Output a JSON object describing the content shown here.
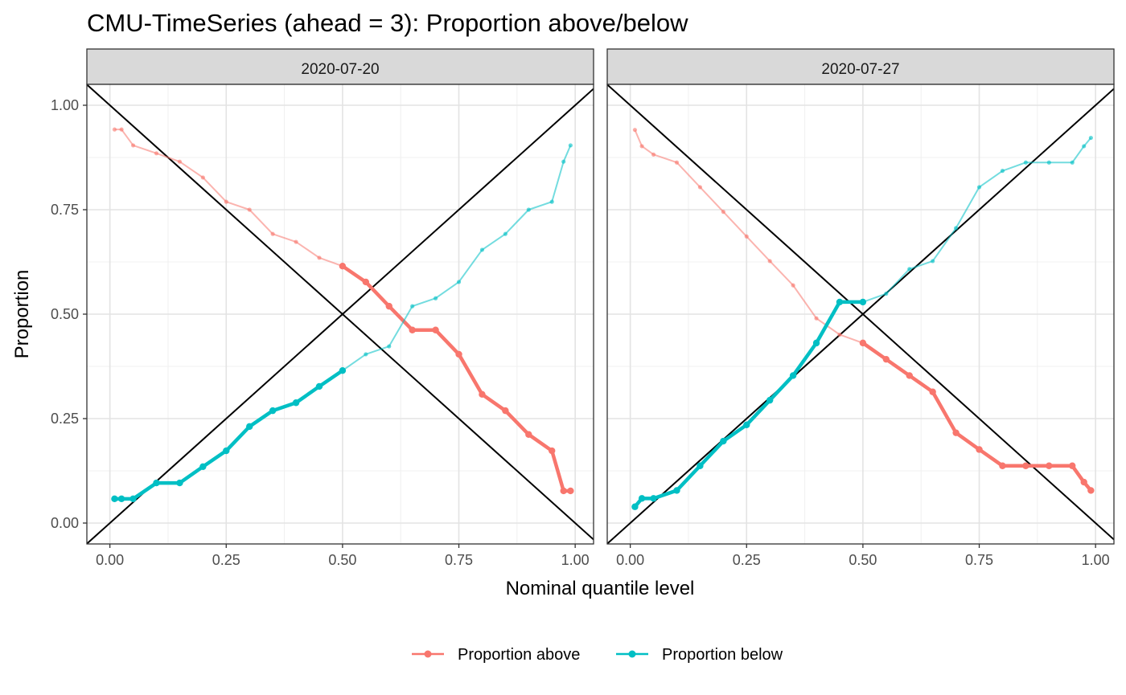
{
  "chart_data": {
    "type": "line",
    "title": "CMU-TimeSeries (ahead = 3): Proportion above/below",
    "xlabel": "Nominal quantile level",
    "ylabel": "Proportion",
    "xlim": [
      -0.0495,
      1.0395
    ],
    "ylim": [
      -0.05,
      1.05
    ],
    "x_ticks": [
      0,
      0.25,
      0.5,
      0.75,
      1
    ],
    "x_tick_labels": [
      "0.00",
      "0.25",
      "0.50",
      "0.75",
      "1.00"
    ],
    "y_ticks": [
      0,
      0.25,
      0.5,
      0.75,
      1
    ],
    "y_tick_labels": [
      "0.00",
      "0.25",
      "0.50",
      "0.75",
      "1.00"
    ],
    "grid": true,
    "legend_position": "bottom",
    "legend": [
      {
        "label": "Proportion above",
        "color": "#F8766D"
      },
      {
        "label": "Proportion below",
        "color": "#00BFC4"
      }
    ],
    "reference_lines": [
      "y = x",
      "y = 1 - x"
    ],
    "quantiles": [
      0.01,
      0.025,
      0.05,
      0.1,
      0.15,
      0.2,
      0.25,
      0.3,
      0.35,
      0.4,
      0.45,
      0.5,
      0.55,
      0.6,
      0.65,
      0.7,
      0.75,
      0.8,
      0.85,
      0.9,
      0.95,
      0.975,
      0.99
    ],
    "panels": [
      {
        "label": "2020-07-20",
        "series": [
          {
            "name": "Proportion above",
            "color": "#F8766D",
            "values": [
              0.942,
              0.942,
              0.904,
              0.885,
              0.865,
              0.827,
              0.769,
              0.75,
              0.692,
              0.673,
              0.635,
              0.615,
              0.577,
              0.519,
              0.462,
              0.462,
              0.404,
              0.308,
              0.269,
              0.212,
              0.173,
              0.077,
              0.077
            ]
          },
          {
            "name": "Proportion below",
            "color": "#00BFC4",
            "values": [
              0.058,
              0.058,
              0.058,
              0.096,
              0.096,
              0.135,
              0.173,
              0.231,
              0.269,
              0.288,
              0.327,
              0.365,
              0.404,
              0.423,
              0.519,
              0.538,
              0.577,
              0.654,
              0.692,
              0.75,
              0.769,
              0.865,
              0.904
            ]
          }
        ]
      },
      {
        "label": "2020-07-27",
        "series": [
          {
            "name": "Proportion above",
            "color": "#F8766D",
            "values": [
              0.941,
              0.902,
              0.882,
              0.863,
              0.804,
              0.745,
              0.686,
              0.627,
              0.569,
              0.49,
              0.451,
              0.431,
              0.392,
              0.353,
              0.314,
              0.216,
              0.176,
              0.137,
              0.137,
              0.137,
              0.137,
              0.098,
              0.078
            ]
          },
          {
            "name": "Proportion below",
            "color": "#00BFC4",
            "values": [
              0.039,
              0.059,
              0.059,
              0.078,
              0.137,
              0.196,
              0.235,
              0.294,
              0.353,
              0.431,
              0.529,
              0.529,
              0.549,
              0.608,
              0.627,
              0.706,
              0.804,
              0.843,
              0.863,
              0.863,
              0.863,
              0.902,
              0.922
            ]
          }
        ]
      }
    ]
  }
}
